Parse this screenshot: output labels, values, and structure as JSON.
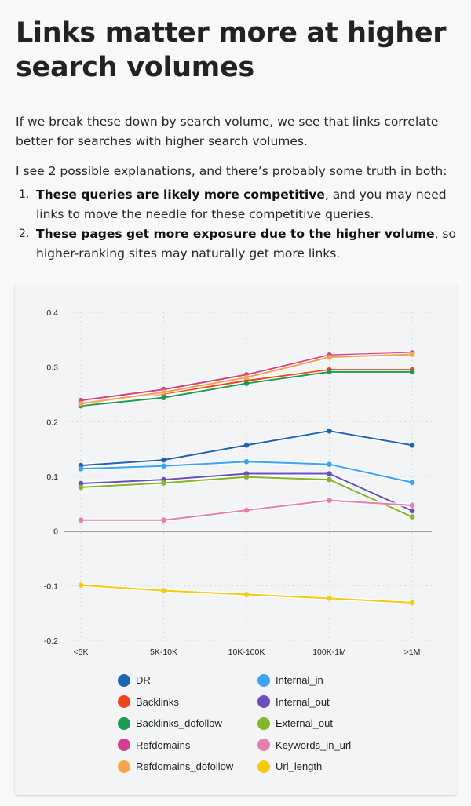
{
  "article": {
    "title": "Links matter more at higher search volumes",
    "paragraph1": "If we break these down by search volume, we see that links correlate better for searches with higher search volumes.",
    "paragraph2": "I see 2 possible explanations, and there’s probably some truth in both:",
    "list": [
      {
        "number": "1.",
        "bold": "These queries are likely more competitive",
        "rest": ", and you may need links to move the needle for these competitive queries."
      },
      {
        "number": "2.",
        "bold": "These pages get more exposure due to the higher volume",
        "rest": ", so higher-ranking sites may naturally get more links."
      }
    ]
  },
  "chart_data": {
    "type": "line",
    "title": "",
    "xlabel": "",
    "ylabel": "",
    "categories": [
      "<5K",
      "5K-10K",
      "10K-100K",
      "100K-1M",
      ">1M"
    ],
    "ylim": [
      -0.2,
      0.4
    ],
    "yticks": [
      0.4,
      0.3,
      0.2,
      0.1,
      0,
      -0.1,
      -0.2
    ],
    "ytick_labels": [
      "0.4",
      "0.3",
      "0.2",
      "0.1",
      "0",
      "-0.1",
      "-0.2"
    ],
    "grid": true,
    "legend_position": "bottom",
    "series": [
      {
        "name": "DR",
        "color": "#1f64b4",
        "values": [
          0.12,
          0.13,
          0.157,
          0.183,
          0.157
        ]
      },
      {
        "name": "Backlinks",
        "color": "#f0441c",
        "values": [
          0.236,
          0.251,
          0.275,
          0.295,
          0.295
        ]
      },
      {
        "name": "Backlinks_dofollow",
        "color": "#1c9b55",
        "values": [
          0.229,
          0.244,
          0.27,
          0.291,
          0.291
        ]
      },
      {
        "name": "Refdomains",
        "color": "#d2418e",
        "values": [
          0.239,
          0.259,
          0.286,
          0.322,
          0.326
        ]
      },
      {
        "name": "Refdomains_dofollow",
        "color": "#f7a54a",
        "values": [
          0.233,
          0.254,
          0.281,
          0.318,
          0.323
        ]
      },
      {
        "name": "Internal_in",
        "color": "#3aa3f5",
        "values": [
          0.114,
          0.119,
          0.127,
          0.122,
          0.089
        ]
      },
      {
        "name": "Internal_out",
        "color": "#6a4fbd",
        "values": [
          0.087,
          0.094,
          0.105,
          0.105,
          0.037
        ]
      },
      {
        "name": "External_out",
        "color": "#86b52a",
        "values": [
          0.08,
          0.088,
          0.099,
          0.094,
          0.026
        ]
      },
      {
        "name": "Keywords_in_url",
        "color": "#e57daf",
        "values": [
          0.02,
          0.02,
          0.038,
          0.056,
          0.047
        ]
      },
      {
        "name": "Url_length",
        "color": "#f6c80f",
        "values": [
          -0.099,
          -0.109,
          -0.116,
          -0.123,
          -0.131
        ]
      }
    ],
    "legend_order": [
      "DR",
      "Internal_in",
      "Backlinks",
      "Internal_out",
      "Backlinks_dofollow",
      "External_out",
      "Refdomains",
      "Keywords_in_url",
      "Refdomains_dofollow",
      "Url_length"
    ]
  }
}
